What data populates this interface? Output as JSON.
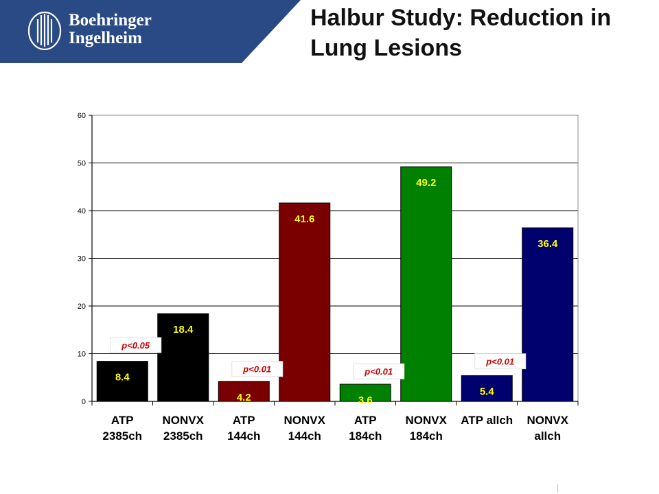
{
  "brand": {
    "line1": "Boehringer",
    "line2": "Ingelheim",
    "logo_icon": "boehringer-building-logo-icon",
    "banner_color": "#2a4a86"
  },
  "title": "Halbur Study: Reduction in Lung Lesions",
  "chart_data": {
    "type": "bar",
    "title": "Halbur Study: Reduction in Lung Lesions",
    "xlabel": "",
    "ylabel": "",
    "ylim": [
      0,
      60
    ],
    "yticks": [
      0,
      10,
      20,
      30,
      40,
      50,
      60
    ],
    "grid": true,
    "legend": "none",
    "categories": [
      [
        "ATP",
        "2385ch"
      ],
      [
        "NONVX",
        "2385ch"
      ],
      [
        "ATP",
        "144ch"
      ],
      [
        "NONVX",
        "144ch"
      ],
      [
        "ATP",
        "184ch"
      ],
      [
        "NONVX",
        "184ch"
      ],
      [
        "ATP allch",
        ""
      ],
      [
        "NONVX",
        "allch"
      ]
    ],
    "values": [
      8.4,
      18.4,
      4.2,
      41.6,
      3.6,
      49.2,
      5.4,
      36.4
    ],
    "value_labels": [
      "8.4",
      "18.4",
      "4.2",
      "41.6",
      "3.6",
      "49.2",
      "5.4",
      "36.4"
    ],
    "colors": [
      "#000000",
      "#000000",
      "#7a0000",
      "#7a0000",
      "#008000",
      "#008000",
      "#00006e",
      "#00006e"
    ],
    "label_color": "#ffff00",
    "annotations": [
      {
        "text": "p<0.05",
        "pair_start": 0,
        "y": 11.8
      },
      {
        "text": "p<0.01",
        "pair_start": 2,
        "y": 6.8
      },
      {
        "text": "p<0.01",
        "pair_start": 4,
        "y": 6.3
      },
      {
        "text": "p<0.01",
        "pair_start": 6,
        "y": 8.4
      }
    ],
    "annotation_color": "#cc0000"
  }
}
